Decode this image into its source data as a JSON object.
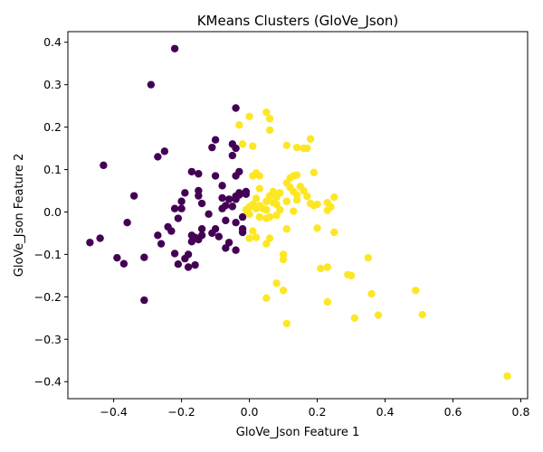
{
  "chart_data": {
    "type": "scatter",
    "title": "KMeans Clusters (GloVe_Json)",
    "xlabel": "GloVe_Json Feature 1",
    "ylabel": "GloVe_Json Feature 2",
    "xlim": [
      -0.535,
      0.82
    ],
    "ylim": [
      -0.44,
      0.425
    ],
    "xticks": [
      -0.4,
      -0.2,
      0.0,
      0.2,
      0.4,
      0.6,
      0.8
    ],
    "xtick_labels": [
      "−0.4",
      "−0.2",
      "0.0",
      "0.2",
      "0.4",
      "0.6",
      "0.8"
    ],
    "yticks": [
      -0.4,
      -0.3,
      -0.2,
      -0.1,
      0.0,
      0.1,
      0.2,
      0.3,
      0.4
    ],
    "ytick_labels": [
      "−0.4",
      "−0.3",
      "−0.2",
      "−0.1",
      "0.0",
      "0.1",
      "0.2",
      "0.3",
      "0.4"
    ],
    "grid": false,
    "legend": "none",
    "colors": {
      "cluster_0": "#440154",
      "cluster_1": "#fde725"
    },
    "series": [
      {
        "cluster": 0,
        "color": "#440154",
        "points": [
          [
            -0.22,
            0.385
          ],
          [
            -0.29,
            0.3
          ],
          [
            -0.04,
            0.245
          ],
          [
            -0.43,
            0.11
          ],
          [
            -0.34,
            0.038
          ],
          [
            -0.36,
            -0.025
          ],
          [
            -0.47,
            -0.072
          ],
          [
            -0.44,
            -0.062
          ],
          [
            -0.39,
            -0.108
          ],
          [
            -0.37,
            -0.122
          ],
          [
            -0.31,
            -0.107
          ],
          [
            -0.31,
            -0.208
          ],
          [
            -0.27,
            0.13
          ],
          [
            -0.25,
            0.143
          ],
          [
            -0.27,
            -0.055
          ],
          [
            -0.26,
            -0.075
          ],
          [
            -0.24,
            -0.035
          ],
          [
            -0.23,
            -0.045
          ],
          [
            -0.22,
            0.008
          ],
          [
            -0.21,
            -0.015
          ],
          [
            -0.22,
            -0.098
          ],
          [
            -0.21,
            -0.123
          ],
          [
            -0.2,
            0.025
          ],
          [
            -0.2,
            0.008
          ],
          [
            -0.19,
            0.045
          ],
          [
            -0.18,
            -0.1
          ],
          [
            -0.18,
            -0.13
          ],
          [
            -0.17,
            0.095
          ],
          [
            -0.16,
            -0.125
          ],
          [
            -0.15,
            0.09
          ],
          [
            -0.15,
            0.05
          ],
          [
            -0.15,
            0.038
          ],
          [
            -0.14,
            0.02
          ],
          [
            -0.14,
            -0.04
          ],
          [
            -0.14,
            -0.055
          ],
          [
            -0.15,
            -0.065
          ],
          [
            -0.16,
            -0.06
          ],
          [
            -0.17,
            -0.055
          ],
          [
            -0.12,
            -0.005
          ],
          [
            -0.11,
            0.152
          ],
          [
            -0.1,
            0.17
          ],
          [
            -0.1,
            0.085
          ],
          [
            -0.1,
            -0.04
          ],
          [
            -0.11,
            -0.05
          ],
          [
            -0.09,
            -0.058
          ],
          [
            -0.08,
            0.062
          ],
          [
            -0.08,
            0.033
          ],
          [
            -0.08,
            0.008
          ],
          [
            -0.07,
            0.015
          ],
          [
            -0.07,
            -0.02
          ],
          [
            -0.07,
            -0.085
          ],
          [
            -0.06,
            -0.072
          ],
          [
            -0.06,
            0.03
          ],
          [
            -0.05,
            0.16
          ],
          [
            -0.05,
            0.133
          ],
          [
            -0.05,
            0.013
          ],
          [
            -0.04,
            0.15
          ],
          [
            -0.04,
            0.085
          ],
          [
            -0.04,
            0.037
          ],
          [
            -0.04,
            -0.025
          ],
          [
            -0.04,
            -0.09
          ],
          [
            -0.03,
            0.095
          ],
          [
            -0.03,
            0.045
          ],
          [
            -0.02,
            -0.012
          ],
          [
            -0.02,
            -0.048
          ],
          [
            -0.02,
            -0.04
          ],
          [
            -0.01,
            0.048
          ],
          [
            -0.01,
            0.042
          ],
          [
            -0.03,
            0.04
          ],
          [
            -0.04,
            0.03
          ],
          [
            -0.17,
            -0.07
          ],
          [
            -0.19,
            -0.11
          ]
        ]
      },
      {
        "cluster": 1,
        "color": "#fde725",
        "points": [
          [
            0.05,
            0.235
          ],
          [
            0.0,
            0.225
          ],
          [
            0.06,
            0.22
          ],
          [
            -0.03,
            0.205
          ],
          [
            0.06,
            0.193
          ],
          [
            0.18,
            0.172
          ],
          [
            -0.02,
            0.16
          ],
          [
            0.01,
            0.155
          ],
          [
            0.11,
            0.157
          ],
          [
            0.14,
            0.152
          ],
          [
            0.16,
            0.15
          ],
          [
            0.17,
            0.15
          ],
          [
            0.19,
            0.093
          ],
          [
            0.02,
            0.092
          ],
          [
            0.01,
            0.085
          ],
          [
            0.03,
            0.085
          ],
          [
            0.13,
            0.085
          ],
          [
            0.14,
            0.087
          ],
          [
            0.12,
            0.08
          ],
          [
            0.11,
            0.068
          ],
          [
            0.12,
            0.058
          ],
          [
            0.15,
            0.06
          ],
          [
            0.13,
            0.048
          ],
          [
            0.14,
            0.04
          ],
          [
            0.16,
            0.05
          ],
          [
            0.17,
            0.037
          ],
          [
            0.25,
            0.035
          ],
          [
            0.03,
            0.055
          ],
          [
            0.06,
            0.038
          ],
          [
            0.07,
            0.048
          ],
          [
            0.08,
            0.035
          ],
          [
            0.09,
            0.045
          ],
          [
            0.02,
            0.032
          ],
          [
            0.05,
            0.025
          ],
          [
            0.07,
            0.022
          ],
          [
            0.11,
            0.025
          ],
          [
            0.14,
            0.028
          ],
          [
            0.18,
            0.02
          ],
          [
            0.19,
            0.015
          ],
          [
            0.2,
            0.018
          ],
          [
            0.23,
            0.022
          ],
          [
            0.24,
            0.012
          ],
          [
            0.23,
            0.004
          ],
          [
            -0.01,
            0.005
          ],
          [
            0.0,
            0.012
          ],
          [
            0.01,
            0.018
          ],
          [
            0.02,
            0.008
          ],
          [
            0.03,
            0.015
          ],
          [
            0.04,
            0.008
          ],
          [
            0.05,
            0.005
          ],
          [
            0.08,
            0.018
          ],
          [
            0.09,
            0.005
          ],
          [
            0.13,
            0.002
          ],
          [
            0.03,
            -0.012
          ],
          [
            0.05,
            -0.015
          ],
          [
            0.06,
            -0.012
          ],
          [
            0.08,
            -0.008
          ],
          [
            0.0,
            -0.005
          ],
          [
            0.01,
            -0.045
          ],
          [
            0.11,
            -0.04
          ],
          [
            0.2,
            -0.038
          ],
          [
            0.25,
            -0.048
          ],
          [
            0.0,
            -0.062
          ],
          [
            0.02,
            -0.06
          ],
          [
            0.06,
            -0.062
          ],
          [
            0.05,
            -0.075
          ],
          [
            0.1,
            -0.1
          ],
          [
            0.1,
            -0.112
          ],
          [
            0.21,
            -0.133
          ],
          [
            0.23,
            -0.13
          ],
          [
            0.35,
            -0.108
          ],
          [
            0.29,
            -0.148
          ],
          [
            0.3,
            -0.15
          ],
          [
            0.08,
            -0.168
          ],
          [
            0.1,
            -0.185
          ],
          [
            0.05,
            -0.203
          ],
          [
            0.23,
            -0.212
          ],
          [
            0.36,
            -0.193
          ],
          [
            0.49,
            -0.185
          ],
          [
            0.31,
            -0.25
          ],
          [
            0.38,
            -0.243
          ],
          [
            0.51,
            -0.242
          ],
          [
            0.11,
            -0.263
          ],
          [
            0.76,
            -0.387
          ]
        ]
      }
    ]
  }
}
